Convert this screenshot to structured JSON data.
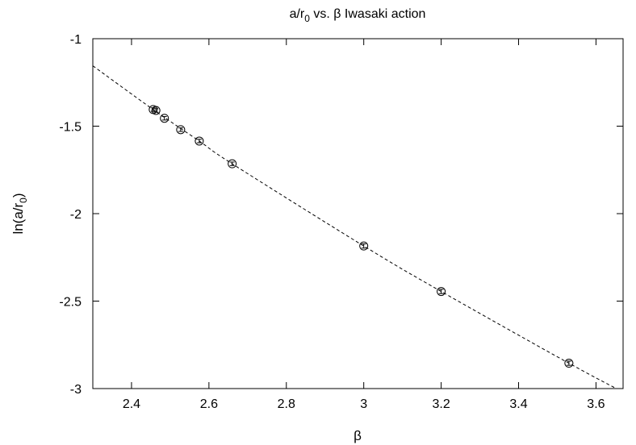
{
  "chart_data": {
    "type": "scatter",
    "title": {
      "main": "a/r",
      "sub": "0",
      "rest": " vs. β Iwasaki action"
    },
    "xlabel": "β",
    "ylabel": {
      "main": "ln(a/r",
      "sub": "0",
      "close": ")"
    },
    "xlim": [
      2.3,
      3.67
    ],
    "ylim": [
      -3,
      -1
    ],
    "xticks": [
      2.4,
      2.6,
      2.8,
      3,
      3.2,
      3.4,
      3.6
    ],
    "xtick_labels": [
      "2.4",
      "2.6",
      "2.8",
      "3",
      "3.2",
      "3.4",
      "3.6"
    ],
    "yticks": [
      -3,
      -2.5,
      -2,
      -1.5,
      -1
    ],
    "ytick_labels": [
      "-3",
      "-2.5",
      "-2",
      "-1.5",
      "-1"
    ],
    "grid": false,
    "series": [
      {
        "marker": "circle",
        "x": [
          2.456,
          2.463,
          2.485,
          2.527,
          2.575,
          2.66,
          3.0,
          3.2,
          3.53
        ],
        "y": [
          -1.405,
          -1.41,
          -1.455,
          -1.52,
          -1.585,
          -1.715,
          -2.185,
          -2.445,
          -2.855
        ],
        "yerr": [
          0.01,
          0.01,
          0.01,
          0.01,
          0.01,
          0.01,
          0.012,
          0.012,
          0.012
        ]
      }
    ],
    "fit": {
      "style": "dashed",
      "x": [
        2.3,
        2.456,
        2.575,
        2.66,
        3.0,
        3.2,
        3.53,
        3.67
      ],
      "y": [
        -1.155,
        -1.405,
        -1.585,
        -1.715,
        -2.185,
        -2.445,
        -2.855,
        -3.02
      ]
    }
  }
}
